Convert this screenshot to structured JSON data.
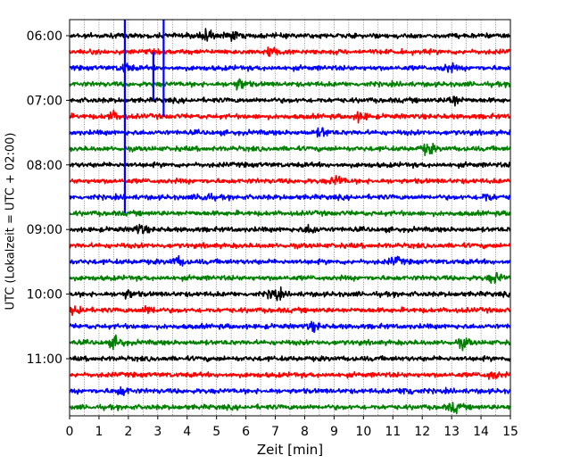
{
  "chart_data": {
    "type": "line",
    "xlabel": "Zeit  [min]",
    "ylabel": "UTC (Lokalzeit = UTC + 02:00)",
    "xlim": [
      0,
      15
    ],
    "x_ticks": [
      "0",
      "1",
      "2",
      "3",
      "4",
      "5",
      "6",
      "7",
      "8",
      "9",
      "10",
      "11",
      "12",
      "13",
      "14",
      "15"
    ],
    "y_ticks": [
      "06:00",
      "07:00",
      "08:00",
      "09:00",
      "10:00",
      "11:00"
    ],
    "row_interval_minutes": 15,
    "start_time": "06:00",
    "grid": {
      "x_minor": true,
      "style": "dotted"
    },
    "colors": [
      "#000000",
      "#ff0000",
      "#0000ff",
      "#008000"
    ],
    "rows": [
      {
        "time": "06:00",
        "color": "#000000",
        "events": [
          [
            4.6,
            2.2
          ],
          [
            5.5,
            1.2
          ]
        ]
      },
      {
        "time": "06:15",
        "color": "#ff0000",
        "events": [
          [
            6.9,
            1.3
          ]
        ]
      },
      {
        "time": "06:30",
        "color": "#0000ff",
        "events": [
          [
            1.9,
            1.2
          ],
          [
            12.9,
            1.0
          ]
        ]
      },
      {
        "time": "06:45",
        "color": "#008000",
        "events": [
          [
            5.8,
            1.6
          ]
        ]
      },
      {
        "time": "07:00",
        "color": "#000000",
        "events": [
          [
            13.1,
            1.5
          ]
        ]
      },
      {
        "time": "07:15",
        "color": "#ff0000",
        "events": [
          [
            1.5,
            1.2
          ],
          [
            9.9,
            1.3
          ]
        ]
      },
      {
        "time": "07:30",
        "color": "#0000ff",
        "events": [
          [
            8.6,
            1.2
          ]
        ]
      },
      {
        "time": "07:45",
        "color": "#008000",
        "events": [
          [
            12.2,
            1.5
          ]
        ]
      },
      {
        "time": "08:00",
        "color": "#000000",
        "events": []
      },
      {
        "time": "08:15",
        "color": "#ff0000",
        "events": [
          [
            9.1,
            1.4
          ]
        ]
      },
      {
        "time": "08:30",
        "color": "#0000ff",
        "events": [
          [
            4.6,
            1.2
          ],
          [
            14.2,
            1.1
          ]
        ]
      },
      {
        "time": "08:45",
        "color": "#008000",
        "events": []
      },
      {
        "time": "09:00",
        "color": "#000000",
        "events": [
          [
            2.4,
            1.3
          ],
          [
            8.2,
            1.2
          ]
        ]
      },
      {
        "time": "09:15",
        "color": "#ff0000",
        "events": []
      },
      {
        "time": "09:30",
        "color": "#0000ff",
        "events": [
          [
            3.7,
            1.2
          ],
          [
            11.1,
            1.1
          ]
        ]
      },
      {
        "time": "09:45",
        "color": "#008000",
        "events": [
          [
            14.5,
            1.5
          ]
        ]
      },
      {
        "time": "10:00",
        "color": "#000000",
        "events": [
          [
            7.0,
            1.8
          ],
          [
            2.0,
            1.1
          ]
        ]
      },
      {
        "time": "10:15",
        "color": "#ff0000",
        "events": [
          [
            0.3,
            1.3
          ],
          [
            2.7,
            1.1
          ]
        ]
      },
      {
        "time": "10:30",
        "color": "#0000ff",
        "events": [
          [
            8.3,
            1.0
          ]
        ]
      },
      {
        "time": "10:45",
        "color": "#008000",
        "events": [
          [
            1.6,
            1.6
          ],
          [
            13.4,
            1.3
          ]
        ]
      },
      {
        "time": "11:00",
        "color": "#000000",
        "events": []
      },
      {
        "time": "11:15",
        "color": "#ff0000",
        "events": [
          [
            14.4,
            1.2
          ]
        ]
      },
      {
        "time": "11:30",
        "color": "#0000ff",
        "events": [
          [
            1.8,
            1.2
          ],
          [
            11.5,
            1.2
          ]
        ]
      },
      {
        "time": "11:45",
        "color": "#008000",
        "events": [
          [
            13.1,
            1.3
          ]
        ]
      }
    ],
    "spikes": [
      {
        "x": 1.88,
        "color": "#0000ff",
        "from": "05:45",
        "to": "08:45"
      },
      {
        "x": 3.2,
        "color": "#0000ff",
        "from": "05:45",
        "to": "07:15"
      },
      {
        "x": 2.85,
        "color": "#0000ff",
        "from": "06:15",
        "to": "07:00"
      }
    ]
  }
}
